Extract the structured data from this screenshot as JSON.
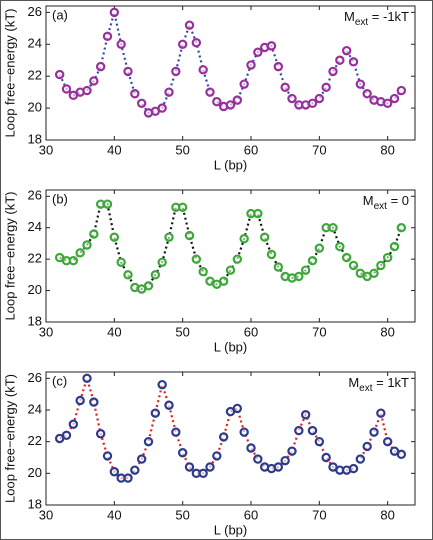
{
  "chart_data": [
    {
      "type": "line",
      "panel_label": "(a)",
      "annotation": {
        "main": "M",
        "sub": "ext",
        "rest": " = -1kT"
      },
      "x_label": "L (bp)",
      "y_label": "Loop free−energy (kT)",
      "xlim": [
        30,
        84
      ],
      "ylim": [
        18,
        26.4
      ],
      "xticks": [
        30,
        40,
        50,
        60,
        70,
        80
      ],
      "yticks": [
        18,
        20,
        22,
        24,
        26
      ],
      "marker_color": "#9a2f9c",
      "line_color": "#2f4aa6",
      "x": [
        32,
        33,
        34,
        35,
        36,
        37,
        38,
        39,
        40,
        41,
        42,
        43,
        44,
        45,
        46,
        47,
        48,
        49,
        50,
        51,
        52,
        53,
        54,
        55,
        56,
        57,
        58,
        59,
        60,
        61,
        62,
        63,
        64,
        65,
        66,
        67,
        68,
        69,
        70,
        71,
        72,
        73,
        74,
        75,
        76,
        77,
        78,
        79,
        80,
        81,
        82
      ],
      "values": [
        22.1,
        21.2,
        20.8,
        21.0,
        21.1,
        21.7,
        22.6,
        24.5,
        26.0,
        24.0,
        22.3,
        20.9,
        20.3,
        19.7,
        19.8,
        20.0,
        21.0,
        22.3,
        24.0,
        25.2,
        24.1,
        22.4,
        21.0,
        20.4,
        20.1,
        20.2,
        20.5,
        21.5,
        22.7,
        23.5,
        23.8,
        23.9,
        22.6,
        21.3,
        20.6,
        20.2,
        20.2,
        20.3,
        20.6,
        21.3,
        22.3,
        23.0,
        23.6,
        22.9,
        21.5,
        20.9,
        20.5,
        20.4,
        20.3,
        20.6,
        21.1
      ]
    },
    {
      "type": "line",
      "panel_label": "(b)",
      "annotation": {
        "main": "M",
        "sub": "ext",
        "rest": " = 0"
      },
      "x_label": "L (bp)",
      "y_label": "Loop free−energy (kT)",
      "xlim": [
        30,
        84
      ],
      "ylim": [
        18,
        26.4
      ],
      "xticks": [
        30,
        40,
        50,
        60,
        70,
        80
      ],
      "yticks": [
        18,
        20,
        22,
        24,
        26
      ],
      "marker_color": "#3aa935",
      "line_color": "#111111",
      "x": [
        32,
        33,
        34,
        35,
        36,
        37,
        38,
        39,
        40,
        41,
        42,
        43,
        44,
        45,
        46,
        47,
        48,
        49,
        50,
        51,
        52,
        53,
        54,
        55,
        56,
        57,
        58,
        59,
        60,
        61,
        62,
        63,
        64,
        65,
        66,
        67,
        68,
        69,
        70,
        71,
        72,
        73,
        74,
        75,
        76,
        77,
        78,
        79,
        80,
        81,
        82
      ],
      "values": [
        22.1,
        21.9,
        21.9,
        22.4,
        22.9,
        23.6,
        25.5,
        25.5,
        23.4,
        21.8,
        21.0,
        20.2,
        20.1,
        20.3,
        21.0,
        21.8,
        23.4,
        25.3,
        25.3,
        23.5,
        22.0,
        21.2,
        20.6,
        20.4,
        20.6,
        21.3,
        22.0,
        23.3,
        24.9,
        24.9,
        23.4,
        22.3,
        21.5,
        20.9,
        20.8,
        20.9,
        21.3,
        21.9,
        22.7,
        24.0,
        24.0,
        22.8,
        22.1,
        21.6,
        21.1,
        20.9,
        21.1,
        21.6,
        22.1,
        22.8,
        24.0
      ]
    },
    {
      "type": "line",
      "panel_label": "(c)",
      "annotation": {
        "main": "M",
        "sub": "ext",
        "rest": " = 1kT"
      },
      "x_label": "L (bp)",
      "y_label": "Loop free−energy (kT)",
      "xlim": [
        30,
        84
      ],
      "ylim": [
        18,
        26.4
      ],
      "xticks": [
        30,
        40,
        50,
        60,
        70,
        80
      ],
      "yticks": [
        18,
        20,
        22,
        24,
        26
      ],
      "marker_color": "#2b3c8e",
      "line_color": "#e02020",
      "x": [
        32,
        33,
        34,
        35,
        36,
        37,
        38,
        39,
        40,
        41,
        42,
        43,
        44,
        45,
        46,
        47,
        48,
        49,
        50,
        51,
        52,
        53,
        54,
        55,
        56,
        57,
        58,
        59,
        60,
        61,
        62,
        63,
        64,
        65,
        66,
        67,
        68,
        69,
        70,
        71,
        72,
        73,
        74,
        75,
        76,
        77,
        78,
        79,
        80,
        81,
        82
      ],
      "values": [
        22.2,
        22.4,
        23.1,
        24.6,
        26.0,
        24.5,
        22.5,
        21.1,
        20.1,
        19.7,
        19.7,
        20.2,
        20.9,
        22.0,
        23.8,
        25.6,
        24.3,
        22.6,
        21.3,
        20.4,
        20.0,
        20.0,
        20.4,
        21.1,
        22.3,
        23.9,
        24.1,
        22.6,
        21.6,
        20.9,
        20.4,
        20.3,
        20.4,
        20.8,
        21.4,
        22.7,
        23.7,
        22.7,
        22.0,
        21.0,
        20.4,
        20.2,
        20.2,
        20.3,
        20.9,
        21.7,
        22.6,
        23.8,
        22.0,
        21.4,
        21.2
      ]
    }
  ]
}
